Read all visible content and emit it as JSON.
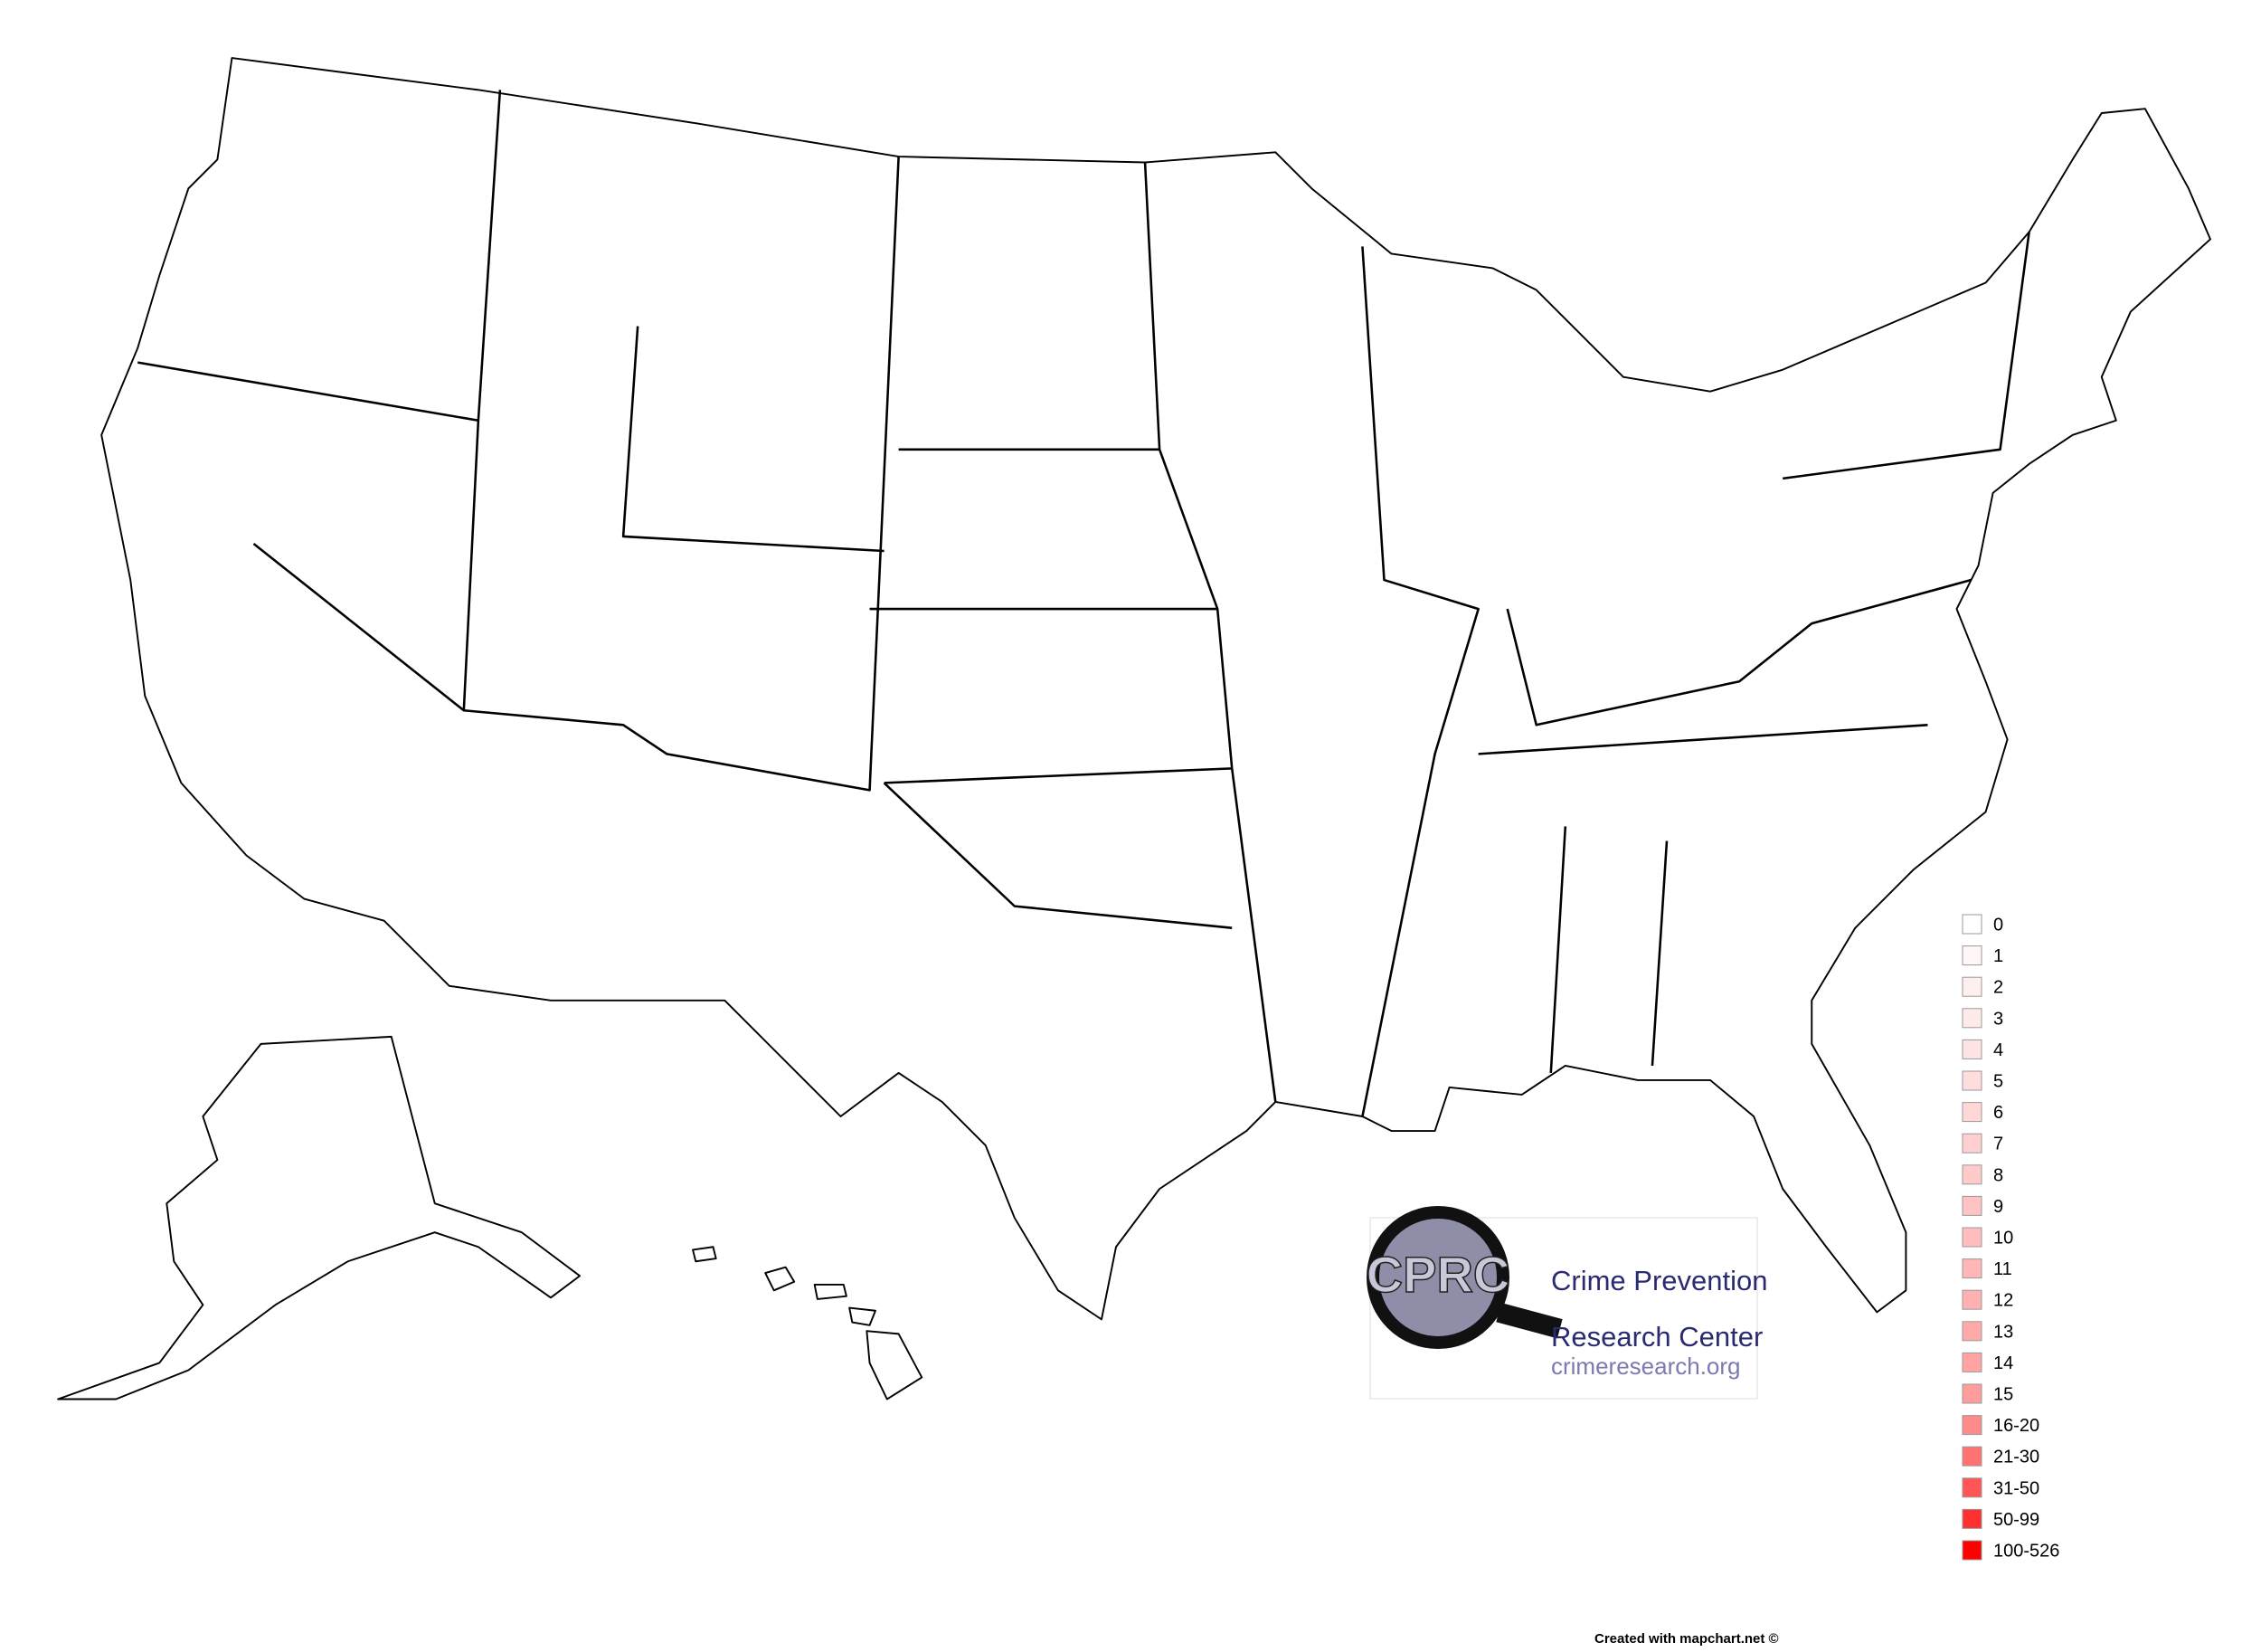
{
  "legend": {
    "items": [
      {
        "label": "0",
        "color": "#ffffff"
      },
      {
        "label": "1",
        "color": "#fff6f6"
      },
      {
        "label": "2",
        "color": "#fff0f0"
      },
      {
        "label": "3",
        "color": "#ffeaea"
      },
      {
        "label": "4",
        "color": "#ffe4e4"
      },
      {
        "label": "5",
        "color": "#ffdddd"
      },
      {
        "label": "6",
        "color": "#ffd7d7"
      },
      {
        "label": "7",
        "color": "#ffd0d0"
      },
      {
        "label": "8",
        "color": "#ffcaca"
      },
      {
        "label": "9",
        "color": "#ffc3c3"
      },
      {
        "label": "10",
        "color": "#ffbdbd"
      },
      {
        "label": "11",
        "color": "#ffb6b6"
      },
      {
        "label": "12",
        "color": "#ffb0b0"
      },
      {
        "label": "13",
        "color": "#ffa9a9"
      },
      {
        "label": "14",
        "color": "#ffa3a3"
      },
      {
        "label": "15",
        "color": "#ff9c9c"
      },
      {
        "label": "16-20",
        "color": "#ff8a8a"
      },
      {
        "label": "21-30",
        "color": "#ff7272"
      },
      {
        "label": "31-50",
        "color": "#ff5555"
      },
      {
        "label": "50-99",
        "color": "#ff3030"
      },
      {
        "label": "100-526",
        "color": "#ff0000"
      }
    ]
  },
  "logo": {
    "acronym": "CPRC",
    "line1": "Crime Prevention",
    "line2": "Research Center",
    "url": "crimeresearch.org"
  },
  "footer": "Created with mapchart.net ©"
}
